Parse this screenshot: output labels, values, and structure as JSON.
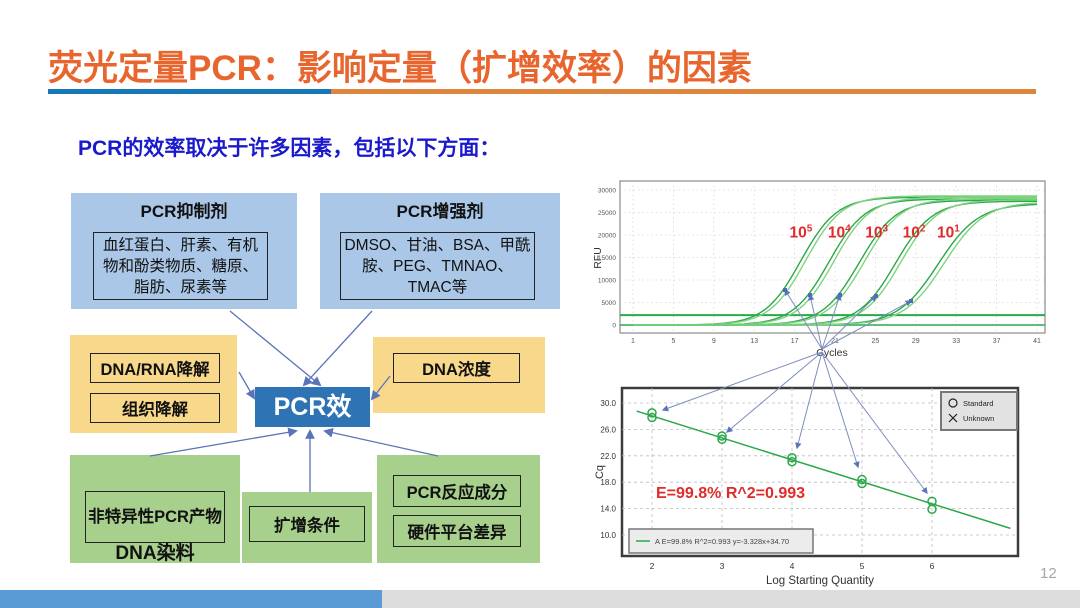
{
  "slide": {
    "title": "荧光定量PCR：影响定量（扩增效率）的因素",
    "subtitle": "PCR的效率取决于许多因素，包括以下方面：",
    "page_number": "12"
  },
  "colors": {
    "title_orange": "#e8652e",
    "underline_blue": "#1778b8",
    "underline_orange": "#dd853c",
    "subtitle_blue": "#1a1acc",
    "box_blue": "#aac7e7",
    "box_yellow": "#f8d88a",
    "box_green": "#a8d08d",
    "center_blue": "#2e74b5",
    "arrow_blue": "#5b74b8",
    "curve_green": "#2aa84a",
    "curve_green_light": "#7fd37f",
    "label_red": "#e02b2b",
    "footer_blue": "#5b9bd5",
    "footer_gray": "#dcdcdc"
  },
  "diagram": {
    "center_label": "PCR效",
    "inhibitor_title": "PCR抑制剂",
    "inhibitor_body": "血红蛋白、肝素、有机物和酚类物质、糖原、脂肪、尿素等",
    "enhancer_title": "PCR增强剂",
    "enhancer_body": "DMSO、甘油、BSA、甲酰胺、PEG、TMNAO、TMAC等",
    "dna_rna_degradation": "DNA/RNA降解",
    "tissue_degradation": "组织降解",
    "dna_concentration": "DNA浓度",
    "nonspecific_products": "非特异性PCR产物",
    "dna_dye": "DNA染料",
    "amplification_conditions": "扩增条件",
    "reaction_components": "PCR反应成分",
    "hardware_difference": "硬件平台差异"
  },
  "chart_data": [
    {
      "type": "line",
      "title": "",
      "xlabel": "Cycles",
      "ylabel": "RFU",
      "xticks": [
        1,
        5,
        9,
        13,
        17,
        21,
        25,
        29,
        33,
        37,
        41
      ],
      "yticks": [
        0,
        5000,
        10000,
        15000,
        20000,
        25000,
        30000
      ],
      "xlim": [
        0,
        42
      ],
      "ylim": [
        -2000,
        32000
      ],
      "grid": true,
      "threshold_rfu": 2200,
      "baseline_rfu": 0,
      "dilution_labels": [
        {
          "base": "10",
          "exp": "5",
          "x": 16.5,
          "y": 19500
        },
        {
          "base": "10",
          "exp": "4",
          "x": 20.3,
          "y": 19500
        },
        {
          "base": "10",
          "exp": "3",
          "x": 24.0,
          "y": 19500
        },
        {
          "base": "10",
          "exp": "2",
          "x": 27.7,
          "y": 19500
        },
        {
          "base": "10",
          "exp": "1",
          "x": 31.1,
          "y": 19500
        }
      ],
      "curves": [
        {
          "mid": 17.6,
          "plateau": 28400,
          "k": 0.56,
          "tone": "dark"
        },
        {
          "mid": 18.1,
          "plateau": 28700,
          "k": 0.56,
          "tone": "light"
        },
        {
          "mid": 20.4,
          "plateau": 28000,
          "k": 0.56,
          "tone": "dark"
        },
        {
          "mid": 20.9,
          "plateau": 28400,
          "k": 0.56,
          "tone": "light"
        },
        {
          "mid": 23.4,
          "plateau": 27700,
          "k": 0.55,
          "tone": "dark"
        },
        {
          "mid": 23.9,
          "plateau": 28100,
          "k": 0.55,
          "tone": "light"
        },
        {
          "mid": 27.0,
          "plateau": 27500,
          "k": 0.55,
          "tone": "dark"
        },
        {
          "mid": 27.5,
          "plateau": 27800,
          "k": 0.55,
          "tone": "light"
        },
        {
          "mid": 31.2,
          "plateau": 27000,
          "k": 0.5,
          "tone": "dark"
        },
        {
          "mid": 31.8,
          "plateau": 27400,
          "k": 0.5,
          "tone": "light"
        }
      ]
    },
    {
      "type": "scatter",
      "title": "",
      "xlabel": "Log Starting Quantity",
      "ylabel": "Cq",
      "xticks": [
        2,
        3,
        4,
        5,
        6
      ],
      "yticks": [
        10.0,
        14.0,
        18.0,
        22.0,
        26.0,
        30.0
      ],
      "xlim": [
        1.55,
        7.3
      ],
      "ylim": [
        8,
        32
      ],
      "grid": true,
      "efficiency_annotation": "E=99.8%  R^2=0.993",
      "fit_line": {
        "slope": -3.328,
        "intercept": 34.7,
        "equation": "y=-3.328x+34.70"
      },
      "fit_legend": "A E=99.8% R^2=0.993 y=-3.328x+34.70",
      "legend_items": [
        {
          "symbol": "circle",
          "label": "Standard"
        },
        {
          "symbol": "x",
          "label": "Unknown"
        }
      ],
      "points_standard": [
        [
          2,
          28.5
        ],
        [
          2,
          27.8
        ],
        [
          3,
          25.0
        ],
        [
          3,
          24.5
        ],
        [
          4,
          21.7
        ],
        [
          4,
          21.1
        ],
        [
          5,
          18.4
        ],
        [
          5,
          17.8
        ],
        [
          6,
          15.1
        ],
        [
          6,
          13.9
        ]
      ]
    }
  ]
}
